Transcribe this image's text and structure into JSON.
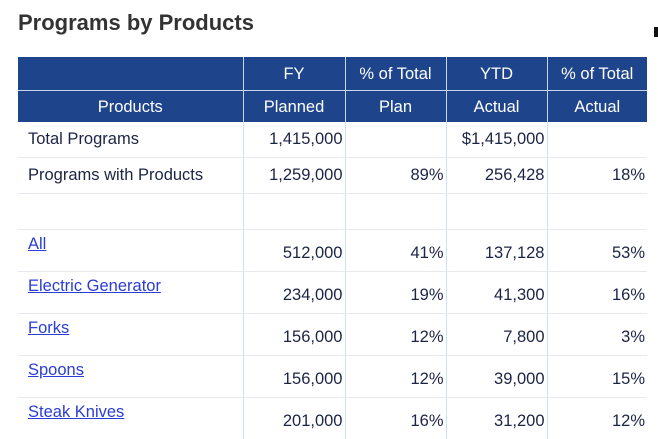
{
  "page": {
    "title": "Programs by Products"
  },
  "table": {
    "header_row1": [
      "",
      "FY",
      "% of Total",
      "YTD",
      "% of Total"
    ],
    "header_row2": [
      "Products",
      "Planned",
      "Plan",
      "Actual",
      "Actual"
    ],
    "summary_rows": [
      {
        "label": "Total Programs",
        "fy_planned": "1,415,000",
        "pct_plan": "",
        "ytd_actual": "$1,415,000",
        "pct_actual": ""
      },
      {
        "label": "Programs with Products",
        "fy_planned": "1,259,000",
        "pct_plan": "89%",
        "ytd_actual": "256,428",
        "pct_actual": "18%"
      },
      {
        "label": "",
        "fy_planned": "",
        "pct_plan": "",
        "ytd_actual": "",
        "pct_actual": ""
      }
    ],
    "product_rows": [
      {
        "label": "All",
        "fy_planned": "512,000",
        "pct_plan": "41%",
        "ytd_actual": "137,128",
        "pct_actual": "53%"
      },
      {
        "label": "Electric Generator",
        "fy_planned": "234,000",
        "pct_plan": "19%",
        "ytd_actual": "41,300",
        "pct_actual": "16%"
      },
      {
        "label": "Forks",
        "fy_planned": "156,000",
        "pct_plan": "12%",
        "ytd_actual": "7,800",
        "pct_actual": "3%"
      },
      {
        "label": "Spoons",
        "fy_planned": "156,000",
        "pct_plan": "12%",
        "ytd_actual": "39,000",
        "pct_actual": "15%"
      },
      {
        "label": "Steak Knives",
        "fy_planned": "201,000",
        "pct_plan": "16%",
        "ytd_actual": "31,200",
        "pct_actual": "12%"
      }
    ]
  },
  "colors": {
    "header_bg": "#1e448c",
    "link": "#2b3cd6",
    "text": "#1c2445",
    "title": "#333333"
  }
}
